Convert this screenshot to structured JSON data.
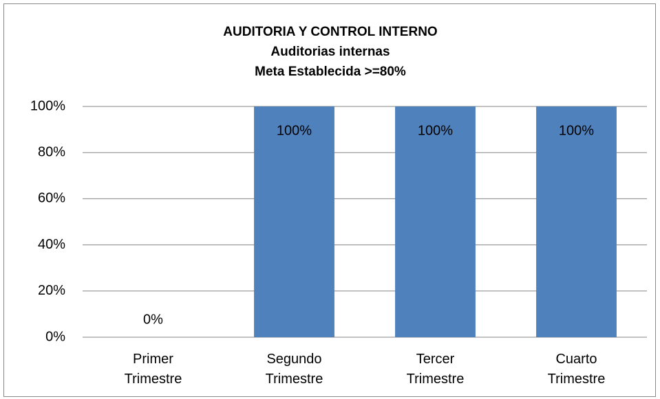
{
  "chart_data": {
    "type": "bar",
    "title": "AUDITORIA Y CONTROL INTERNO",
    "subtitle": "Auditorias internas",
    "note": "Meta Establecida >=80%",
    "categories": [
      "Primer Trimestre",
      "Segundo Trimestre",
      "Tercer Trimestre",
      "Cuarto Trimestre"
    ],
    "values": [
      0,
      100,
      100,
      100
    ],
    "value_labels": [
      "0%",
      "100%",
      "100%",
      "100%"
    ],
    "color": "#4f81bd",
    "ylim": [
      0,
      100
    ],
    "yticks": [
      {
        "value": 0,
        "label": "0%"
      },
      {
        "value": 20,
        "label": "20%"
      },
      {
        "value": 40,
        "label": "40%"
      },
      {
        "value": 60,
        "label": "60%"
      },
      {
        "value": 80,
        "label": "80%"
      },
      {
        "value": 100,
        "label": "100%"
      }
    ],
    "grid": true
  }
}
